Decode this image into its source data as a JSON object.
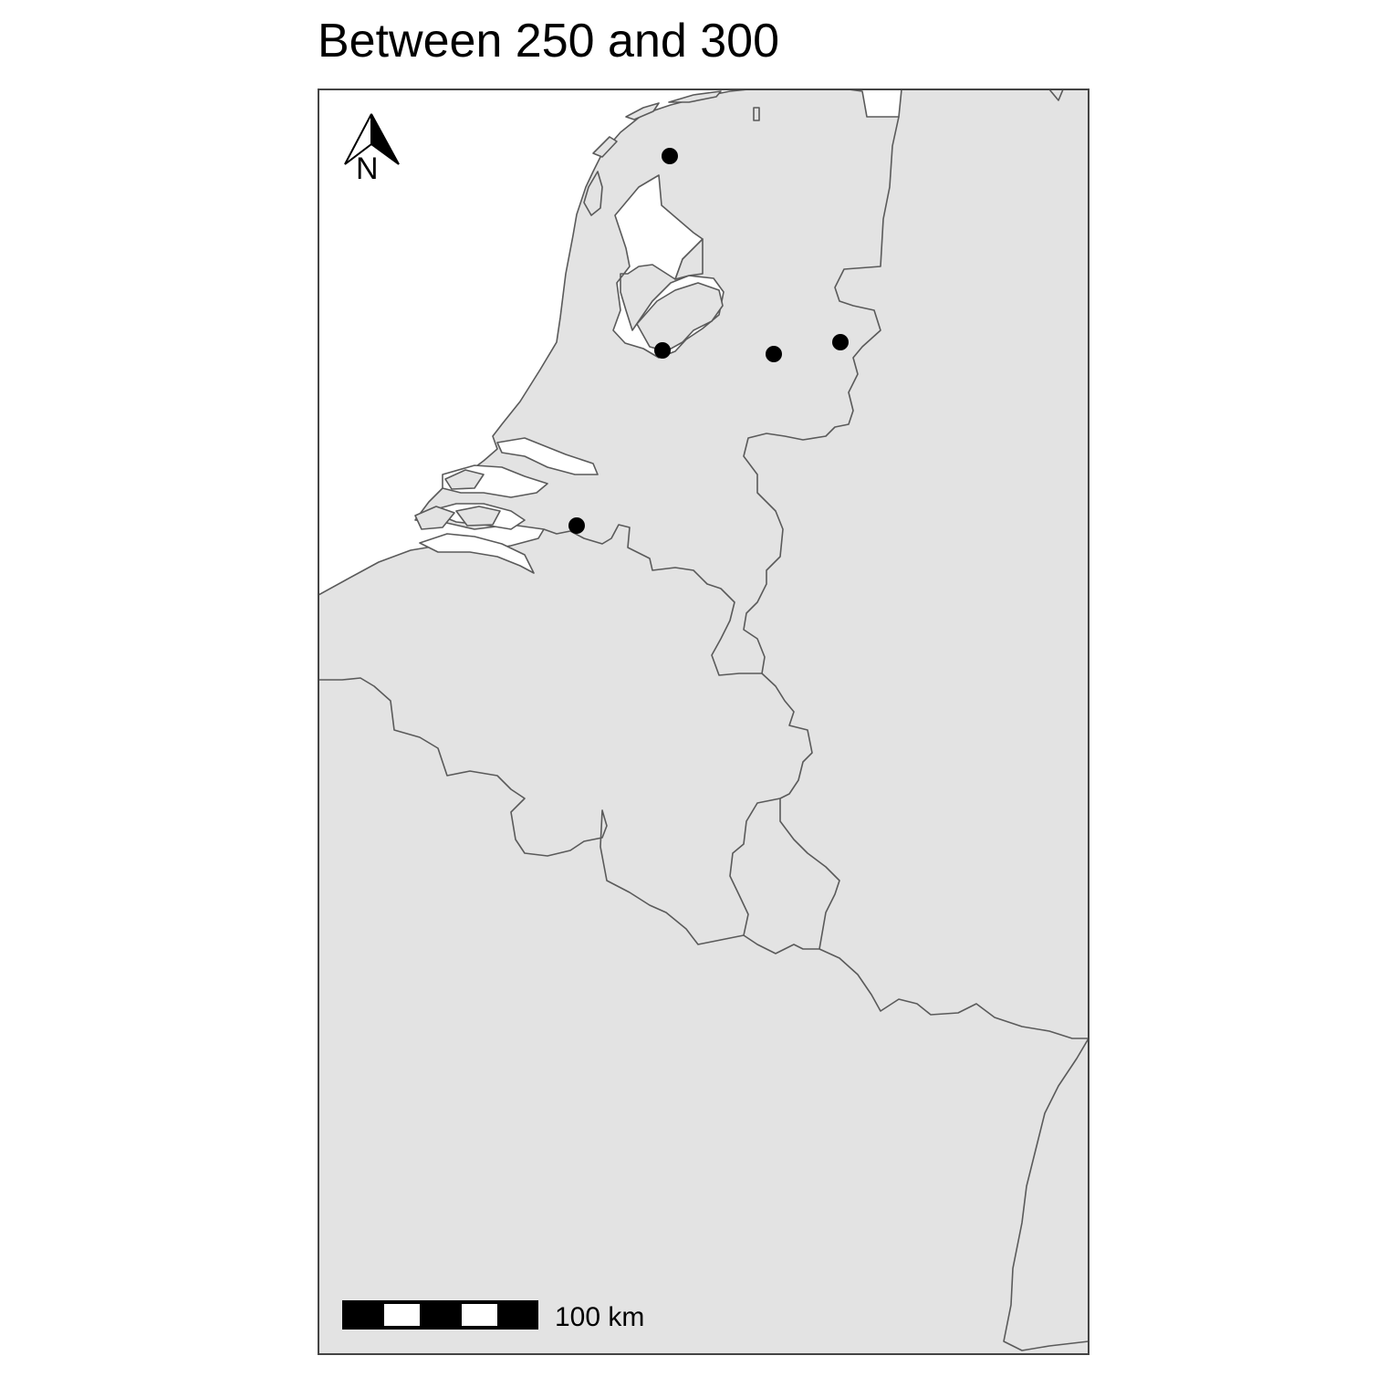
{
  "title": "Between 250 and 300",
  "scale_bar": {
    "label": "100 km",
    "segments": [
      "black",
      "white",
      "black",
      "white",
      "black"
    ]
  },
  "north_arrow": {
    "letter": "N",
    "icon": "north-arrow-icon"
  },
  "colors": {
    "land": "#e3e3e3",
    "water": "#ffffff",
    "border": "#5a5a5a",
    "point": "#000000"
  },
  "points": {
    "count": 5,
    "marker": "filled-circle"
  }
}
